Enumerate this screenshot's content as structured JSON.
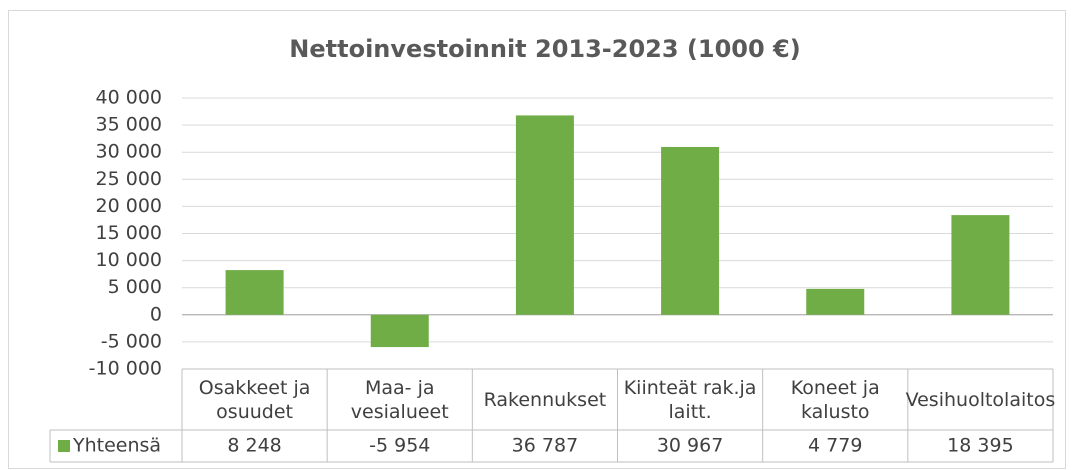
{
  "chart_data": {
    "type": "bar",
    "title": "Nettoinvestoinnit 2013-2023 (1000 €)",
    "categories": [
      "Osakkeet ja osuudet",
      "Maa- ja vesialueet",
      "Rakennukset",
      "Kiinteät rak.ja laitt.",
      "Koneet ja kalusto",
      "Vesihuoltolaitos"
    ],
    "series": [
      {
        "name": "Yhteensä",
        "color": "#70ad47",
        "values": [
          8248,
          -5954,
          36787,
          30967,
          4779,
          18395
        ],
        "value_labels": [
          "8 248",
          "-5 954",
          "36 787",
          "30 967",
          "4 779",
          "18 395"
        ]
      }
    ],
    "ylim": [
      -10000,
      40000
    ],
    "yticks": [
      {
        "value": -10000,
        "label": "-10 000"
      },
      {
        "value": -5000,
        "label": "-5 000"
      },
      0,
      {
        "value": 5000,
        "label": "5 000"
      },
      {
        "value": 10000,
        "label": "10 000"
      },
      {
        "value": 15000,
        "label": "15 000"
      },
      {
        "value": 20000,
        "label": "20 000"
      },
      {
        "value": 25000,
        "label": "25 000"
      },
      {
        "value": 30000,
        "label": "30 000"
      },
      {
        "value": 35000,
        "label": "35 000"
      },
      {
        "value": 40000,
        "label": "40 000"
      }
    ],
    "grid": true
  }
}
